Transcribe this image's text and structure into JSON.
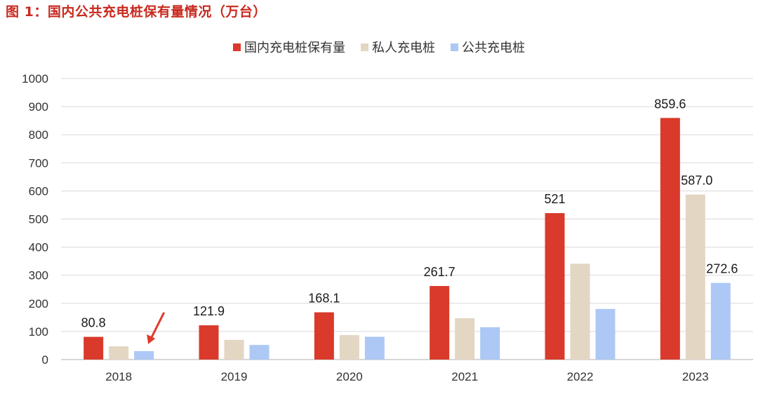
{
  "figure_title": "图 1：国内公共充电桩保有量情况（万台）",
  "colors": {
    "title": "#c8291e",
    "series": [
      "#d93a2b",
      "#e3d6c3",
      "#adc8f5"
    ],
    "arrow": "#e03a2a",
    "grid": "#d9d9d9",
    "axis": "#bfbfbf"
  },
  "chart_data": {
    "type": "bar",
    "title": "",
    "xlabel": "",
    "ylabel": "",
    "ylim": [
      0,
      1000
    ],
    "yticks": [
      0,
      100,
      200,
      300,
      400,
      500,
      600,
      700,
      800,
      900,
      1000
    ],
    "grid": true,
    "legend_position": "top-center",
    "categories": [
      "2018",
      "2019",
      "2020",
      "2021",
      "2022",
      "2023"
    ],
    "series": [
      {
        "name": "国内充电桩保有量",
        "values": [
          80.8,
          121.9,
          168.1,
          261.7,
          521,
          859.6
        ],
        "labels": [
          "80.8",
          "121.9",
          "168.1",
          "261.7",
          "521",
          "859.6"
        ]
      },
      {
        "name": "私人充电桩",
        "values": [
          47,
          70,
          87,
          147,
          341,
          587.0
        ],
        "labels": [
          "",
          "",
          "",
          "",
          "",
          "587.0"
        ]
      },
      {
        "name": "公共充电桩",
        "values": [
          30,
          52,
          81,
          115,
          180,
          272.6
        ],
        "labels": [
          "",
          "",
          "",
          "",
          "",
          "272.6"
        ]
      }
    ],
    "annotations": [
      {
        "type": "arrow",
        "category": "2018",
        "series": "公共充电桩",
        "color": "#e03a2a"
      }
    ]
  }
}
